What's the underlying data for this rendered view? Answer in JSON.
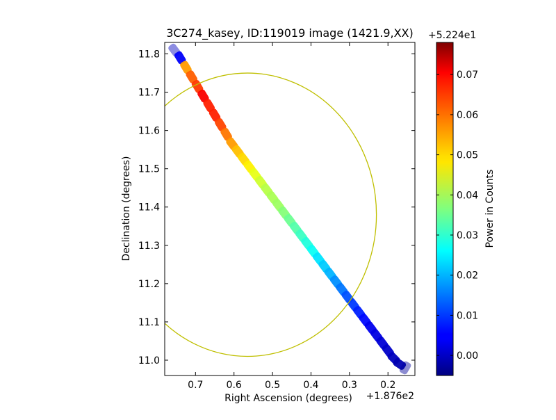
{
  "chart_data": {
    "type": "heatmap",
    "title": "3C274_kasey, ID:119019 image (1421.9,XX)",
    "xlabel": "Right Ascension (degrees)",
    "ylabel": "Declination (degrees)",
    "x_offset_text": "+1.876e2",
    "x_axis_inverted": true,
    "xlim": [
      0.78,
      0.13
    ],
    "ylim": [
      10.96,
      11.83
    ],
    "xticks": [
      0.7,
      0.6,
      0.5,
      0.4,
      0.3,
      0.2
    ],
    "xtick_labels": [
      "0.7",
      "0.6",
      "0.5",
      "0.4",
      "0.3",
      "0.2"
    ],
    "yticks": [
      11.0,
      11.1,
      11.2,
      11.3,
      11.4,
      11.5,
      11.6,
      11.7,
      11.8
    ],
    "ytick_labels": [
      "11.0",
      "11.1",
      "11.2",
      "11.3",
      "11.4",
      "11.5",
      "11.6",
      "11.7",
      "11.8"
    ],
    "colorbar": {
      "label": "Power in Counts",
      "offset_text": "+5.224e1",
      "colormap": "jet",
      "range": [
        -0.005,
        0.078
      ],
      "ticks": [
        0.0,
        0.01,
        0.02,
        0.03,
        0.04,
        0.05,
        0.06,
        0.07
      ],
      "tick_labels": [
        "0.00",
        "0.01",
        "0.02",
        "0.03",
        "0.04",
        "0.05",
        "0.06",
        "0.07"
      ]
    },
    "beam_circle": {
      "center_ra": 0.565,
      "center_dec": 11.38,
      "radius_ra": 0.335,
      "radius_dec": 0.37,
      "color": "#bfbf00"
    },
    "strip_points": [
      {
        "ra": 0.755,
        "dec": 11.81,
        "power": 0.0
      },
      {
        "ra": 0.74,
        "dec": 11.79,
        "power": 0.005
      },
      {
        "ra": 0.725,
        "dec": 11.765,
        "power": 0.055
      },
      {
        "ra": 0.71,
        "dec": 11.74,
        "power": 0.06
      },
      {
        "ra": 0.695,
        "dec": 11.715,
        "power": 0.063
      },
      {
        "ra": 0.68,
        "dec": 11.69,
        "power": 0.068
      },
      {
        "ra": 0.665,
        "dec": 11.665,
        "power": 0.065
      },
      {
        "ra": 0.65,
        "dec": 11.64,
        "power": 0.065
      },
      {
        "ra": 0.635,
        "dec": 11.615,
        "power": 0.062
      },
      {
        "ra": 0.62,
        "dec": 11.59,
        "power": 0.058
      },
      {
        "ra": 0.605,
        "dec": 11.565,
        "power": 0.055
      },
      {
        "ra": 0.59,
        "dec": 11.545,
        "power": 0.052
      },
      {
        "ra": 0.575,
        "dec": 11.525,
        "power": 0.05
      },
      {
        "ra": 0.56,
        "dec": 11.505,
        "power": 0.048
      },
      {
        "ra": 0.545,
        "dec": 11.485,
        "power": 0.045
      },
      {
        "ra": 0.53,
        "dec": 11.465,
        "power": 0.043
      },
      {
        "ra": 0.515,
        "dec": 11.445,
        "power": 0.041
      },
      {
        "ra": 0.5,
        "dec": 11.425,
        "power": 0.04
      },
      {
        "ra": 0.485,
        "dec": 11.405,
        "power": 0.039
      },
      {
        "ra": 0.47,
        "dec": 11.385,
        "power": 0.037
      },
      {
        "ra": 0.455,
        "dec": 11.365,
        "power": 0.035
      },
      {
        "ra": 0.44,
        "dec": 11.345,
        "power": 0.033
      },
      {
        "ra": 0.425,
        "dec": 11.325,
        "power": 0.031
      },
      {
        "ra": 0.41,
        "dec": 11.305,
        "power": 0.029
      },
      {
        "ra": 0.395,
        "dec": 11.285,
        "power": 0.027
      },
      {
        "ra": 0.38,
        "dec": 11.265,
        "power": 0.024
      },
      {
        "ra": 0.365,
        "dec": 11.245,
        "power": 0.022
      },
      {
        "ra": 0.35,
        "dec": 11.225,
        "power": 0.02
      },
      {
        "ra": 0.335,
        "dec": 11.205,
        "power": 0.017
      },
      {
        "ra": 0.32,
        "dec": 11.185,
        "power": 0.015
      },
      {
        "ra": 0.305,
        "dec": 11.165,
        "power": 0.012
      },
      {
        "ra": 0.29,
        "dec": 11.145,
        "power": 0.01
      },
      {
        "ra": 0.275,
        "dec": 11.125,
        "power": 0.008
      },
      {
        "ra": 0.26,
        "dec": 11.105,
        "power": 0.006
      },
      {
        "ra": 0.245,
        "dec": 11.085,
        "power": 0.004
      },
      {
        "ra": 0.23,
        "dec": 11.065,
        "power": 0.003
      },
      {
        "ra": 0.215,
        "dec": 11.045,
        "power": 0.002
      },
      {
        "ra": 0.2,
        "dec": 11.025,
        "power": 0.001
      },
      {
        "ra": 0.185,
        "dec": 11.005,
        "power": 0.0
      },
      {
        "ra": 0.17,
        "dec": 10.99,
        "power": -0.001
      },
      {
        "ra": 0.155,
        "dec": 10.98,
        "power": -0.003
      }
    ]
  }
}
